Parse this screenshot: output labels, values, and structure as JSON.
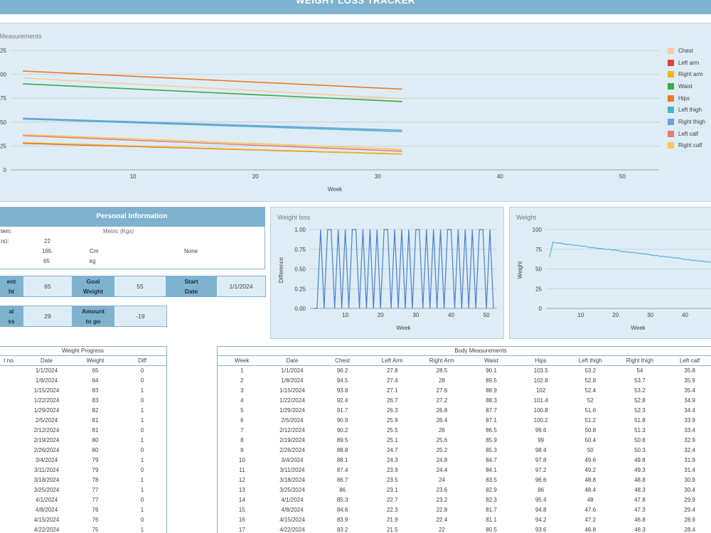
{
  "app_title": "WEIGHT LOSS TRACKER",
  "measurements_chart": {
    "title": "Measurements",
    "xlabel": "Week",
    "yticks": [
      "0",
      "25",
      "50",
      "75",
      "100",
      "125"
    ],
    "xticks": [
      "10",
      "20",
      "30",
      "40",
      "50"
    ],
    "legend": [
      {
        "label": "Chest",
        "color": "#f8cba0"
      },
      {
        "label": "Left arm",
        "color": "#e0403a"
      },
      {
        "label": "Right arm",
        "color": "#f2b51c"
      },
      {
        "label": "Waist",
        "color": "#3aa94a"
      },
      {
        "label": "Hips",
        "color": "#ee7a22"
      },
      {
        "label": "Left thigh",
        "color": "#4db3c9"
      },
      {
        "label": "Right thigh",
        "color": "#6e9fdf"
      },
      {
        "label": "Left calf",
        "color": "#eb7b7b"
      },
      {
        "label": "Right calf",
        "color": "#f4c85a"
      }
    ]
  },
  "chart_data": [
    {
      "type": "line",
      "title": "Measurements",
      "xlabel": "Week",
      "ylabel": "",
      "xlim": [
        0,
        53
      ],
      "ylim": [
        0,
        125
      ],
      "series": [
        {
          "name": "Chest",
          "color": "#f8cba0",
          "start": [
            1,
            96.2
          ],
          "end": [
            32,
            74.5
          ]
        },
        {
          "name": "Left arm",
          "color": "#e0403a",
          "start": [
            1,
            27.8
          ],
          "end": [
            32,
            16.5
          ]
        },
        {
          "name": "Right arm",
          "color": "#f2b51c",
          "start": [
            1,
            28.5
          ],
          "end": [
            32,
            16.5
          ]
        },
        {
          "name": "Waist",
          "color": "#3aa94a",
          "start": [
            1,
            90.1
          ],
          "end": [
            32,
            71.5
          ]
        },
        {
          "name": "Hips",
          "color": "#ee7a22",
          "start": [
            1,
            103.5
          ],
          "end": [
            32,
            84.5
          ]
        },
        {
          "name": "Left thigh",
          "color": "#4db3c9",
          "start": [
            1,
            53.2
          ],
          "end": [
            32,
            40
          ]
        },
        {
          "name": "Right thigh",
          "color": "#6e9fdf",
          "start": [
            1,
            54
          ],
          "end": [
            32,
            41.5
          ]
        },
        {
          "name": "Left calf",
          "color": "#eb7b7b",
          "start": [
            1,
            35.8
          ],
          "end": [
            32,
            19.5
          ]
        },
        {
          "name": "Right calf",
          "color": "#f4c85a",
          "start": [
            1,
            37
          ],
          "end": [
            32,
            21.5
          ]
        }
      ]
    },
    {
      "type": "line",
      "title": "Weight loss",
      "xlabel": "Week",
      "ylabel": "Difference",
      "xlim": [
        0,
        53
      ],
      "ylim": [
        0,
        1
      ],
      "x": [
        1,
        2,
        3,
        4,
        5,
        6,
        7,
        8,
        9,
        10,
        11,
        12,
        13,
        14,
        15,
        16,
        17,
        18,
        19,
        20,
        21,
        22,
        23,
        24,
        25,
        26,
        27,
        28,
        29,
        30,
        31,
        32,
        33,
        34,
        35,
        36,
        37,
        38,
        39,
        40,
        41,
        42,
        43,
        44,
        45,
        46,
        47,
        48,
        49,
        50,
        51,
        52
      ],
      "values": [
        0,
        0,
        1,
        0,
        1,
        1,
        0,
        1,
        0,
        1,
        0,
        1,
        1,
        0,
        1,
        0,
        1,
        0,
        1,
        0,
        1,
        1,
        0,
        1,
        0,
        1,
        0,
        1,
        0,
        1,
        1,
        0,
        1,
        0,
        1,
        0,
        1,
        0,
        1,
        1,
        0,
        1,
        0,
        1,
        0,
        1,
        0,
        1,
        1,
        0,
        1,
        0
      ]
    },
    {
      "type": "line",
      "title": "Weight",
      "xlabel": "Week",
      "ylabel": "Weight",
      "xlim": [
        0,
        53
      ],
      "ylim": [
        0,
        100
      ],
      "x": [
        1,
        2,
        3,
        4,
        5,
        6,
        7,
        8,
        9,
        10,
        11,
        12,
        13,
        14,
        15,
        16,
        17,
        18,
        19,
        20,
        21,
        22,
        23,
        24,
        25,
        26,
        27,
        28,
        29,
        30,
        31,
        32,
        33,
        34,
        35,
        36,
        37,
        38,
        39,
        40,
        41,
        42,
        43,
        44,
        45,
        46,
        47,
        48,
        49,
        50,
        51,
        52
      ],
      "values": [
        65,
        84,
        83,
        83,
        82,
        81,
        81,
        80,
        80,
        79,
        79,
        78,
        77,
        77,
        76,
        76,
        75,
        75,
        74,
        74,
        73,
        72,
        72,
        71,
        71,
        70,
        70,
        69,
        69,
        68,
        67,
        67,
        66,
        66,
        65,
        65,
        64,
        64,
        63,
        62,
        62,
        61,
        61,
        60,
        60,
        59,
        59,
        58,
        57,
        57,
        56,
        56
      ]
    }
  ],
  "weight_loss_chart": {
    "title": "Weight loss",
    "xlabel": "Week",
    "ylabel": "Difference",
    "yticks": [
      "0.00",
      "0.25",
      "0.50",
      "0.75",
      "1.00"
    ],
    "xticks": [
      "10",
      "20",
      "30",
      "40",
      "50"
    ]
  },
  "weight_chart": {
    "title": "Weight",
    "xlabel": "Week",
    "ylabel": "Weight",
    "yticks": [
      "0",
      "25",
      "50",
      "75",
      "100"
    ],
    "xticks": [
      "10",
      "20",
      "30",
      "40"
    ]
  },
  "personal_info": {
    "header": "Personal Information",
    "system_label": "tem:",
    "system_value": "Metric (Kgs)",
    "age_label": "rs):",
    "age_value": "22",
    "height_value": "165",
    "height_unit": "Cm",
    "height_extra": "None",
    "weight_value": "65",
    "weight_unit": "kg"
  },
  "stats": {
    "current_label_1": "ent",
    "current_label_2": "ht",
    "current_value": "65",
    "goal_label_1": "Goal",
    "goal_label_2": "Weight",
    "goal_value": "55",
    "start_label_1": "Start",
    "start_label_2": "Date",
    "start_value": "1/1/2024",
    "total_label_1": "al",
    "total_label_2": "ss",
    "total_value": "29",
    "amount_label_1": "Amount",
    "amount_label_2": "to go",
    "amount_value": "-19"
  },
  "weight_progress": {
    "title": "Weight Progress",
    "columns": [
      "t no.",
      "Date",
      "Weight",
      "Diff"
    ],
    "rows": [
      [
        "",
        "1/1/2024",
        "65",
        "0"
      ],
      [
        "",
        "1/8/2024",
        "84",
        "0"
      ],
      [
        "",
        "1/15/2024",
        "83",
        "1"
      ],
      [
        "",
        "1/22/2024",
        "83",
        "0"
      ],
      [
        "",
        "1/29/2024",
        "82",
        "1"
      ],
      [
        "",
        "2/5/2024",
        "81",
        "1"
      ],
      [
        "",
        "2/12/2024",
        "81",
        "0"
      ],
      [
        "",
        "2/19/2024",
        "80",
        "1"
      ],
      [
        "",
        "2/26/2024",
        "80",
        "0"
      ],
      [
        "",
        "3/4/2024",
        "79",
        "1"
      ],
      [
        "",
        "3/11/2024",
        "79",
        "0"
      ],
      [
        "",
        "3/18/2024",
        "78",
        "1"
      ],
      [
        "",
        "3/25/2024",
        "77",
        "1"
      ],
      [
        "",
        "4/1/2024",
        "77",
        "0"
      ],
      [
        "",
        "4/8/2024",
        "76",
        "1"
      ],
      [
        "",
        "4/15/2024",
        "76",
        "0"
      ],
      [
        "",
        "4/22/2024",
        "75",
        "1"
      ]
    ]
  },
  "body_measurements": {
    "title": "Body Measurements",
    "columns": [
      "Week",
      "Date",
      "Chest",
      "Left Arm",
      "Right Arm",
      "Waist",
      "Hips",
      "Left thigh",
      "Right thigh",
      "Left calf",
      "Ri"
    ],
    "rows": [
      [
        "1",
        "1/1/2024",
        "96.2",
        "27.8",
        "28.5",
        "90.1",
        "103.5",
        "53.2",
        "54",
        "35.8",
        ""
      ],
      [
        "2",
        "1/8/2024",
        "94.5",
        "27.4",
        "28",
        "89.5",
        "102.8",
        "52.8",
        "53.7",
        "35.9",
        ""
      ],
      [
        "3",
        "1/15/2024",
        "93.8",
        "27.1",
        "27.6",
        "88.9",
        "102",
        "52.4",
        "53.2",
        "35.4",
        ""
      ],
      [
        "4",
        "1/22/2024",
        "92.4",
        "26.7",
        "27.2",
        "88.3",
        "101.4",
        "52",
        "52.8",
        "34.9",
        ""
      ],
      [
        "5",
        "1/29/2024",
        "91.7",
        "26.3",
        "26.8",
        "87.7",
        "100.8",
        "51.6",
        "52.3",
        "34.4",
        ""
      ],
      [
        "6",
        "2/5/2024",
        "90.9",
        "25.9",
        "26.4",
        "87.1",
        "100.2",
        "51.2",
        "51.8",
        "33.9",
        ""
      ],
      [
        "7",
        "2/12/2024",
        "90.2",
        "25.5",
        "26",
        "86.5",
        "99.6",
        "50.8",
        "51.3",
        "33.4",
        ""
      ],
      [
        "8",
        "2/19/2024",
        "89.5",
        "25.1",
        "25.6",
        "85.9",
        "99",
        "50.4",
        "50.8",
        "32.9",
        ""
      ],
      [
        "9",
        "2/26/2024",
        "88.8",
        "24.7",
        "25.2",
        "85.3",
        "98.4",
        "50",
        "50.3",
        "32.4",
        ""
      ],
      [
        "10",
        "3/4/2024",
        "88.1",
        "24.3",
        "24.8",
        "84.7",
        "97.8",
        "49.6",
        "49.8",
        "31.9",
        ""
      ],
      [
        "11",
        "3/11/2024",
        "87.4",
        "23.9",
        "24.4",
        "84.1",
        "97.2",
        "49.2",
        "49.3",
        "31.4",
        ""
      ],
      [
        "12",
        "3/18/2024",
        "86.7",
        "23.5",
        "24",
        "83.5",
        "96.6",
        "48.8",
        "48.8",
        "30.9",
        ""
      ],
      [
        "13",
        "3/25/2024",
        "86",
        "23.1",
        "23.6",
        "82.9",
        "96",
        "48.4",
        "48.3",
        "30.4",
        ""
      ],
      [
        "14",
        "4/1/2024",
        "85.3",
        "22.7",
        "23.2",
        "82.3",
        "95.4",
        "48",
        "47.8",
        "29.9",
        ""
      ],
      [
        "15",
        "4/8/2024",
        "84.6",
        "22.3",
        "22.8",
        "81.7",
        "94.8",
        "47.6",
        "47.3",
        "29.4",
        ""
      ],
      [
        "16",
        "4/15/2024",
        "83.9",
        "21.9",
        "22.4",
        "81.1",
        "94.2",
        "47.2",
        "46.8",
        "28.9",
        ""
      ],
      [
        "17",
        "4/22/2024",
        "83.2",
        "21.5",
        "22",
        "80.5",
        "93.6",
        "46.8",
        "46.3",
        "28.4",
        ""
      ]
    ]
  }
}
